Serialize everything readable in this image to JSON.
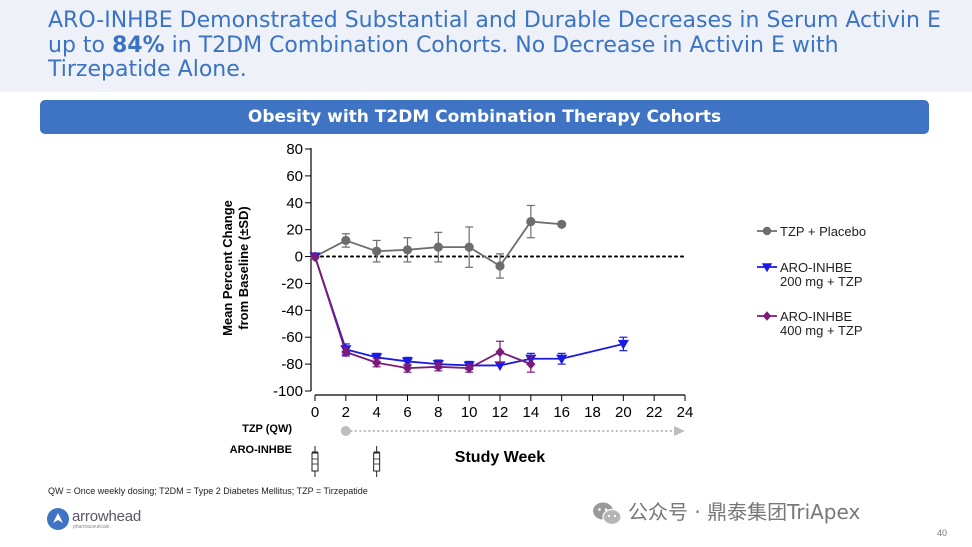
{
  "slide": {
    "title_part1": "ARO-INHBE Demonstrated Substantial and Durable Decreases in Serum Activin E up to ",
    "title_bold": "84%",
    "title_part2": " in T2DM Combination Cohorts. No Decrease in Activin E with Tirzepatide Alone.",
    "banner": "Obesity with T2DM Combination Therapy Cohorts",
    "footnote": "QW = Once weekly dosing; T2DM = Type 2 Diabetes Mellitus; TZP = Tirzepatide",
    "logo_text": "arrowhead",
    "logo_sub": "pharmaceuticals",
    "watermark": "公众号 · 鼎泰集团TriApex",
    "page_number": "40"
  },
  "colors": {
    "accent": "#3f73c3",
    "title": "#3b73c4",
    "placebo": "#6d6d6d",
    "aro200": "#1a1ae6",
    "aro400": "#7a1a7a",
    "tzp_arrow": "#bdbdbd"
  },
  "chart_data": {
    "type": "line",
    "title": "Obesity with T2DM Combination Therapy Cohorts",
    "ylabel_line1": "Mean Percent Change",
    "ylabel_line2": "from Baseline (±SD)",
    "xlabel": "Study Week",
    "ylim": [
      -100,
      80
    ],
    "yticks": [
      80,
      60,
      40,
      20,
      0,
      -20,
      -40,
      -60,
      -80,
      -100
    ],
    "xlim": [
      0,
      24
    ],
    "xticks": [
      0,
      2,
      4,
      6,
      8,
      10,
      12,
      14,
      16,
      18,
      20,
      22,
      24
    ],
    "zero_reference_line": "dotted",
    "series": [
      {
        "name": "TZP + Placebo",
        "legend_line1": "TZP + Placebo",
        "legend_line2": "",
        "marker": "circle",
        "color": "#6d6d6d",
        "x": [
          0,
          2,
          4,
          6,
          8,
          10,
          12,
          14,
          16
        ],
        "y": [
          0,
          12,
          4,
          5,
          7,
          7,
          -7,
          26,
          24
        ],
        "err": [
          0,
          5,
          8,
          9,
          11,
          15,
          9,
          12,
          0
        ]
      },
      {
        "name": "ARO-INHBE 200 mg + TZP",
        "legend_line1": "ARO-INHBE",
        "legend_line2": "200 mg + TZP",
        "marker": "triangle-down",
        "color": "#1a1ae6",
        "x": [
          0,
          2,
          4,
          6,
          8,
          10,
          12,
          14,
          16,
          20
        ],
        "y": [
          0,
          -69,
          -75,
          -78,
          -80,
          -81,
          -81,
          -76,
          -76,
          -65
        ],
        "err": [
          0,
          4,
          3,
          3,
          3,
          3,
          0,
          4,
          4,
          5
        ]
      },
      {
        "name": "ARO-INHBE 400 mg + TZP",
        "legend_line1": "ARO-INHBE",
        "legend_line2": "400 mg + TZP",
        "marker": "diamond",
        "color": "#7a1a7a",
        "x": [
          0,
          2,
          4,
          6,
          8,
          10,
          12,
          14
        ],
        "y": [
          0,
          -71,
          -79,
          -83,
          -82,
          -83,
          -71,
          -80
        ],
        "err": [
          0,
          3,
          3,
          3,
          3,
          3,
          8,
          6
        ]
      }
    ],
    "dosing": {
      "tzp_label": "TZP (QW)",
      "tzp_start_week": 2,
      "tzp_end_week": 24,
      "aro_label": "ARO-INHBE",
      "aro_weeks": [
        0,
        4
      ]
    }
  }
}
